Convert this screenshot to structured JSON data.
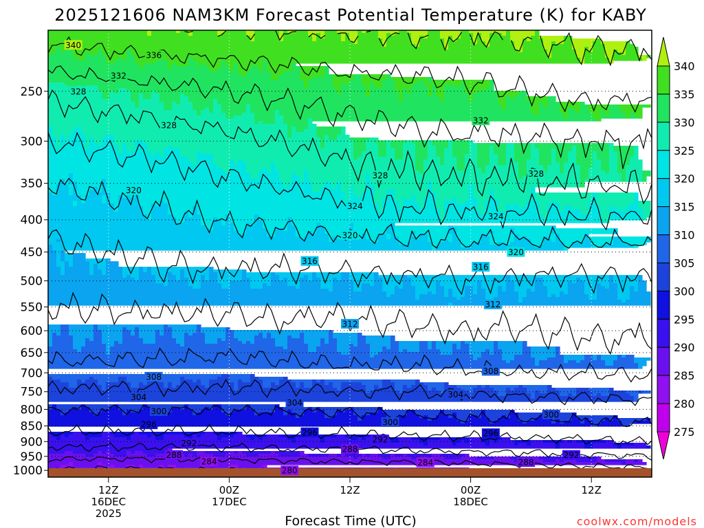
{
  "chart_data": {
    "type": "heatmap",
    "subtype": "filled-contour time-height cross section",
    "title": "2025121606 NAM3KM Forecast Potential Temperature (K) for KABY",
    "xlabel": "Forecast Time (UTC)",
    "ylabel": "",
    "credit": "coolwx.com/models",
    "x_range_hours": [
      0,
      60
    ],
    "y_range_hPa": [
      200,
      1025
    ],
    "y_axis_scale": "log-pressure, inverted",
    "y_ticks": [
      "250",
      "300",
      "350",
      "400",
      "450",
      "500",
      "550",
      "600",
      "650",
      "700",
      "750",
      "800",
      "850",
      "900",
      "950",
      "1000"
    ],
    "x_ticks": [
      {
        "hour": 6,
        "l1": "12Z",
        "l2": "16DEC",
        "l3": "2025"
      },
      {
        "hour": 18,
        "l1": "00Z",
        "l2": "17DEC",
        "l3": ""
      },
      {
        "hour": 30,
        "l1": "12Z",
        "l2": "",
        "l3": ""
      },
      {
        "hour": 42,
        "l1": "00Z",
        "l2": "18DEC",
        "l3": ""
      },
      {
        "hour": 54,
        "l1": "12Z",
        "l2": "",
        "l3": ""
      }
    ],
    "colorbar": {
      "levels": [
        275,
        280,
        285,
        290,
        295,
        300,
        305,
        310,
        315,
        320,
        325,
        330,
        335,
        340
      ],
      "labels": [
        "275",
        "280",
        "285",
        "290",
        "295",
        "300",
        "305",
        "310",
        "315",
        "320",
        "325",
        "330",
        "335",
        "340"
      ],
      "colors": [
        "#f000d8",
        "#c000ec",
        "#9010f0",
        "#6a10ee",
        "#3a10ee",
        "#1010e0",
        "#1c44dc",
        "#2066e8",
        "#0aa4f0",
        "#00c8f0",
        "#00e4e4",
        "#10ecb0",
        "#20e460",
        "#40e020",
        "#b0f010"
      ]
    },
    "surface_color": "#a4522c",
    "filled_field": {
      "description": "potential temperature (K) vs forecast hour and pressure level",
      "hours": [
        0,
        6,
        12,
        18,
        24,
        30,
        36,
        42,
        48,
        54,
        60
      ],
      "levels_hPa": [
        1020,
        1000,
        975,
        950,
        925,
        900,
        875,
        850,
        825,
        800,
        775,
        750,
        700,
        650,
        600,
        550,
        500,
        450,
        400,
        350,
        300,
        250,
        200
      ],
      "values": [
        [
          281.0,
          281.5,
          282.0,
          282.5,
          282.5,
          283.0,
          283.5,
          284.0,
          284.5,
          285.0,
          285.0
        ],
        [
          283.5,
          283.0,
          283.5,
          284.0,
          284.5,
          285.0,
          285.0,
          285.5,
          286.0,
          286.5,
          287.0
        ],
        [
          286.5,
          286.0,
          286.5,
          286.5,
          287.0,
          287.5,
          287.5,
          288.0,
          288.5,
          289.0,
          289.5
        ],
        [
          289.0,
          289.0,
          289.0,
          289.5,
          289.5,
          290.0,
          290.0,
          290.5,
          291.0,
          291.5,
          292.0
        ],
        [
          291.5,
          291.5,
          291.5,
          291.5,
          292.0,
          292.0,
          292.5,
          293.0,
          293.0,
          293.5,
          294.0
        ],
        [
          293.5,
          293.5,
          293.5,
          293.5,
          294.0,
          294.0,
          294.5,
          295.0,
          295.0,
          295.5,
          296.0
        ],
        [
          295.5,
          295.5,
          295.5,
          295.5,
          296.0,
          296.0,
          296.5,
          296.5,
          297.0,
          297.5,
          298.0
        ],
        [
          297.0,
          297.0,
          297.0,
          297.0,
          297.5,
          297.5,
          298.0,
          298.5,
          298.5,
          299.0,
          299.5
        ],
        [
          298.5,
          298.5,
          298.5,
          298.5,
          299.0,
          299.0,
          299.5,
          300.0,
          300.0,
          300.5,
          301.0
        ],
        [
          300.0,
          300.0,
          300.0,
          300.0,
          300.5,
          300.5,
          301.0,
          301.5,
          301.5,
          302.0,
          302.5
        ],
        [
          302.0,
          302.0,
          302.0,
          302.0,
          302.0,
          302.5,
          302.5,
          303.0,
          303.5,
          303.5,
          304.0
        ],
        [
          303.5,
          303.5,
          303.5,
          303.5,
          303.5,
          304.0,
          304.0,
          304.5,
          305.0,
          305.0,
          305.5
        ],
        [
          306.5,
          306.5,
          306.5,
          306.0,
          306.5,
          307.0,
          307.0,
          307.5,
          308.0,
          308.0,
          308.5
        ],
        [
          309.0,
          309.0,
          308.5,
          308.5,
          309.0,
          309.5,
          309.5,
          310.0,
          310.5,
          311.0,
          311.0
        ],
        [
          310.5,
          310.5,
          310.5,
          310.5,
          311.0,
          311.0,
          311.5,
          312.0,
          312.0,
          312.5,
          312.5
        ],
        [
          312.0,
          312.0,
          312.5,
          312.5,
          313.0,
          313.0,
          313.5,
          314.0,
          313.5,
          314.0,
          314.0
        ],
        [
          313.5,
          314.0,
          315.0,
          315.0,
          315.0,
          315.0,
          315.5,
          316.0,
          315.5,
          315.5,
          315.5
        ],
        [
          315.0,
          316.0,
          317.0,
          317.5,
          317.5,
          318.0,
          318.5,
          318.5,
          318.5,
          318.5,
          318.5
        ],
        [
          317.5,
          318.5,
          319.5,
          320.5,
          321.0,
          322.0,
          322.5,
          323.0,
          323.0,
          323.5,
          323.5
        ],
        [
          320.0,
          321.0,
          322.0,
          323.5,
          324.5,
          326.0,
          327.0,
          327.5,
          328.0,
          328.5,
          328.5
        ],
        [
          324.0,
          325.0,
          326.0,
          327.0,
          328.5,
          330.0,
          331.0,
          331.5,
          331.5,
          332.0,
          332.0
        ],
        [
          329.0,
          330.0,
          331.0,
          332.0,
          333.0,
          334.0,
          334.5,
          335.0,
          336.0,
          337.0,
          337.0
        ],
        [
          338.0,
          339.0,
          339.5,
          340.0,
          340.0,
          340.5,
          340.5,
          340.5,
          341.0,
          341.5,
          341.5
        ]
      ]
    },
    "contour_labels": [
      {
        "text": "340",
        "hour": 2.5,
        "hPa": 211
      },
      {
        "text": "336",
        "hour": 10.5,
        "hPa": 219
      },
      {
        "text": "332",
        "hour": 7.0,
        "hPa": 236
      },
      {
        "text": "328",
        "hour": 3.0,
        "hPa": 250
      },
      {
        "text": "328",
        "hour": 12.0,
        "hPa": 283
      },
      {
        "text": "332",
        "hour": 43.0,
        "hPa": 278
      },
      {
        "text": "328",
        "hour": 33.0,
        "hPa": 340
      },
      {
        "text": "328",
        "hour": 48.5,
        "hPa": 338
      },
      {
        "text": "320",
        "hour": 8.5,
        "hPa": 359
      },
      {
        "text": "324",
        "hour": 30.5,
        "hPa": 380
      },
      {
        "text": "324",
        "hour": 44.5,
        "hPa": 395
      },
      {
        "text": "320",
        "hour": 30.0,
        "hPa": 423
      },
      {
        "text": "320",
        "hour": 46.5,
        "hPa": 450
      },
      {
        "text": "316",
        "hour": 26.0,
        "hPa": 465
      },
      {
        "text": "316",
        "hour": 43.0,
        "hPa": 475
      },
      {
        "text": "312",
        "hour": 44.2,
        "hPa": 545
      },
      {
        "text": "312",
        "hour": 30.0,
        "hPa": 585
      },
      {
        "text": "308",
        "hour": 10.5,
        "hPa": 710
      },
      {
        "text": "308",
        "hour": 44.0,
        "hPa": 695
      },
      {
        "text": "304",
        "hour": 9.0,
        "hPa": 765
      },
      {
        "text": "304",
        "hour": 24.5,
        "hPa": 780
      },
      {
        "text": "304",
        "hour": 40.5,
        "hPa": 757
      },
      {
        "text": "300",
        "hour": 11.0,
        "hPa": 805
      },
      {
        "text": "300",
        "hour": 34.0,
        "hPa": 838
      },
      {
        "text": "300",
        "hour": 50.0,
        "hPa": 815
      },
      {
        "text": "296",
        "hour": 10.0,
        "hPa": 845
      },
      {
        "text": "296",
        "hour": 26.0,
        "hPa": 870
      },
      {
        "text": "296",
        "hour": 44.0,
        "hPa": 873
      },
      {
        "text": "292",
        "hour": 14.0,
        "hPa": 905
      },
      {
        "text": "292",
        "hour": 33.0,
        "hPa": 893
      },
      {
        "text": "292",
        "hour": 52.0,
        "hPa": 945
      },
      {
        "text": "288",
        "hour": 12.5,
        "hPa": 945
      },
      {
        "text": "288",
        "hour": 30.0,
        "hPa": 925
      },
      {
        "text": "288",
        "hour": 47.5,
        "hPa": 970
      },
      {
        "text": "284",
        "hour": 16.0,
        "hPa": 968
      },
      {
        "text": "284",
        "hour": 37.5,
        "hPa": 971
      },
      {
        "text": "280",
        "hour": 24.0,
        "hPa": 1000
      }
    ]
  }
}
